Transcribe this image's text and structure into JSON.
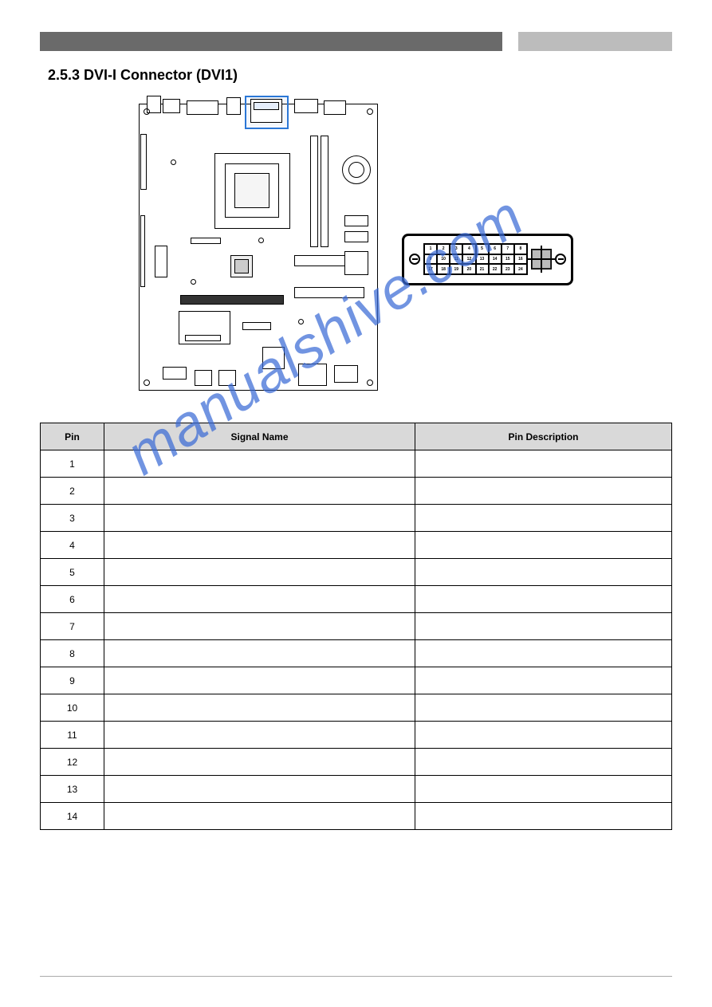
{
  "header": {
    "section_title": "2.5.3 DVI-I Connector (DVI1)"
  },
  "watermark_text": "manualshive.com",
  "dvi_pins_grid": [
    "1",
    "2",
    "3",
    "4",
    "5",
    "6",
    "7",
    "8",
    "9",
    "10",
    "11",
    "12",
    "13",
    "14",
    "15",
    "16",
    "17",
    "18",
    "19",
    "20",
    "21",
    "22",
    "23",
    "24"
  ],
  "table": {
    "headers": [
      "Pin",
      "Signal Name",
      "Pin Description"
    ],
    "rows": [
      [
        "1",
        "",
        ""
      ],
      [
        "2",
        "",
        ""
      ],
      [
        "3",
        "",
        ""
      ],
      [
        "4",
        "",
        ""
      ],
      [
        "5",
        "",
        ""
      ],
      [
        "6",
        "",
        ""
      ],
      [
        "7",
        "",
        ""
      ],
      [
        "8",
        "",
        ""
      ],
      [
        "9",
        "",
        ""
      ],
      [
        "10",
        "",
        ""
      ],
      [
        "11",
        "",
        ""
      ],
      [
        "12",
        "",
        ""
      ],
      [
        "13",
        "",
        ""
      ],
      [
        "14",
        "",
        ""
      ]
    ]
  },
  "footer": {
    "left": "",
    "right": ""
  },
  "colors": {
    "header_dark": "#6a6a6a",
    "header_light": "#bcbcbc",
    "table_header_bg": "#d9d9d9",
    "highlight_border": "#2b77d6",
    "watermark": "#3b6bd6"
  }
}
